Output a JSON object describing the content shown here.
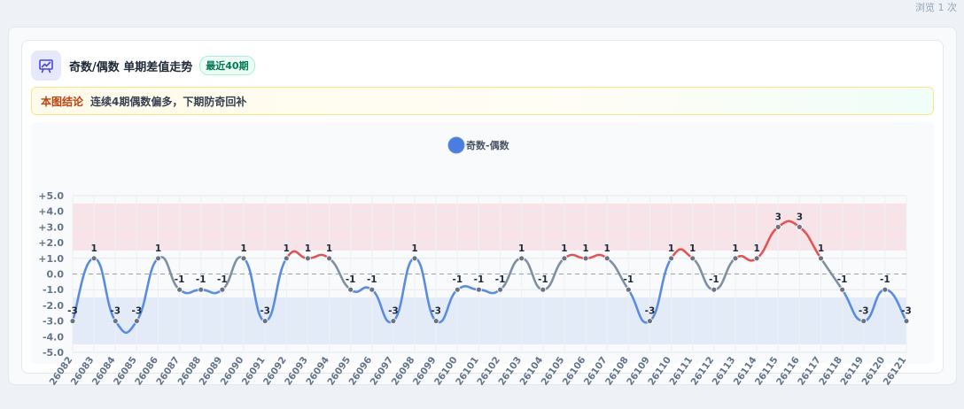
{
  "view_count": "浏览 1 次",
  "header": {
    "icon": "presentation-chart-icon",
    "title": "奇数/偶数 单期差值走势",
    "badge": "最近40期"
  },
  "conclusion": {
    "label": "本图结论",
    "text": "连续4期偶数偏多，下期防奇回补"
  },
  "colors": {
    "base_line": "#8090a4",
    "low_line": "#5b8ce0",
    "high_line": "#e05555",
    "high_band": "#f8e4e8",
    "low_band": "#e3ebf9",
    "legend_dot": "#4a7de0"
  },
  "chart_data": {
    "type": "line",
    "legend": [
      "奇数-偶数"
    ],
    "legend_position": "top-center",
    "categories": [
      "26082",
      "26083",
      "26084",
      "26085",
      "26086",
      "26087",
      "26088",
      "26089",
      "26090",
      "26091",
      "26092",
      "26093",
      "26094",
      "26095",
      "26096",
      "26097",
      "26098",
      "26099",
      "26100",
      "26101",
      "26102",
      "26103",
      "26104",
      "26105",
      "26106",
      "26107",
      "26108",
      "26109",
      "26110",
      "26111",
      "26112",
      "26113",
      "26114",
      "26115",
      "26116",
      "26117",
      "26118",
      "26119",
      "26120",
      "26121"
    ],
    "series": [
      {
        "name": "奇数-偶数",
        "values": [
          -3,
          1,
          -3,
          -3,
          1,
          -1,
          -1,
          -1,
          1,
          -3,
          1,
          1,
          1,
          -1,
          -1,
          -3,
          1,
          -3,
          -1,
          -1,
          -1,
          1,
          -1,
          1,
          1,
          1,
          -1,
          -3,
          1,
          1,
          -1,
          1,
          1,
          3,
          3,
          1,
          -1,
          -3,
          -1,
          -3
        ]
      }
    ],
    "ylim": [
      -5,
      5
    ],
    "yticks": [
      "+5.0",
      "+4.0",
      "+3.0",
      "+2.0",
      "+1.0",
      "0.0",
      "-1.0",
      "-2.0",
      "-3.0",
      "-4.0",
      "-5.0"
    ],
    "high_band": [
      1.5,
      4.5
    ],
    "low_band": [
      -4.5,
      -1.5
    ],
    "grid": true
  }
}
